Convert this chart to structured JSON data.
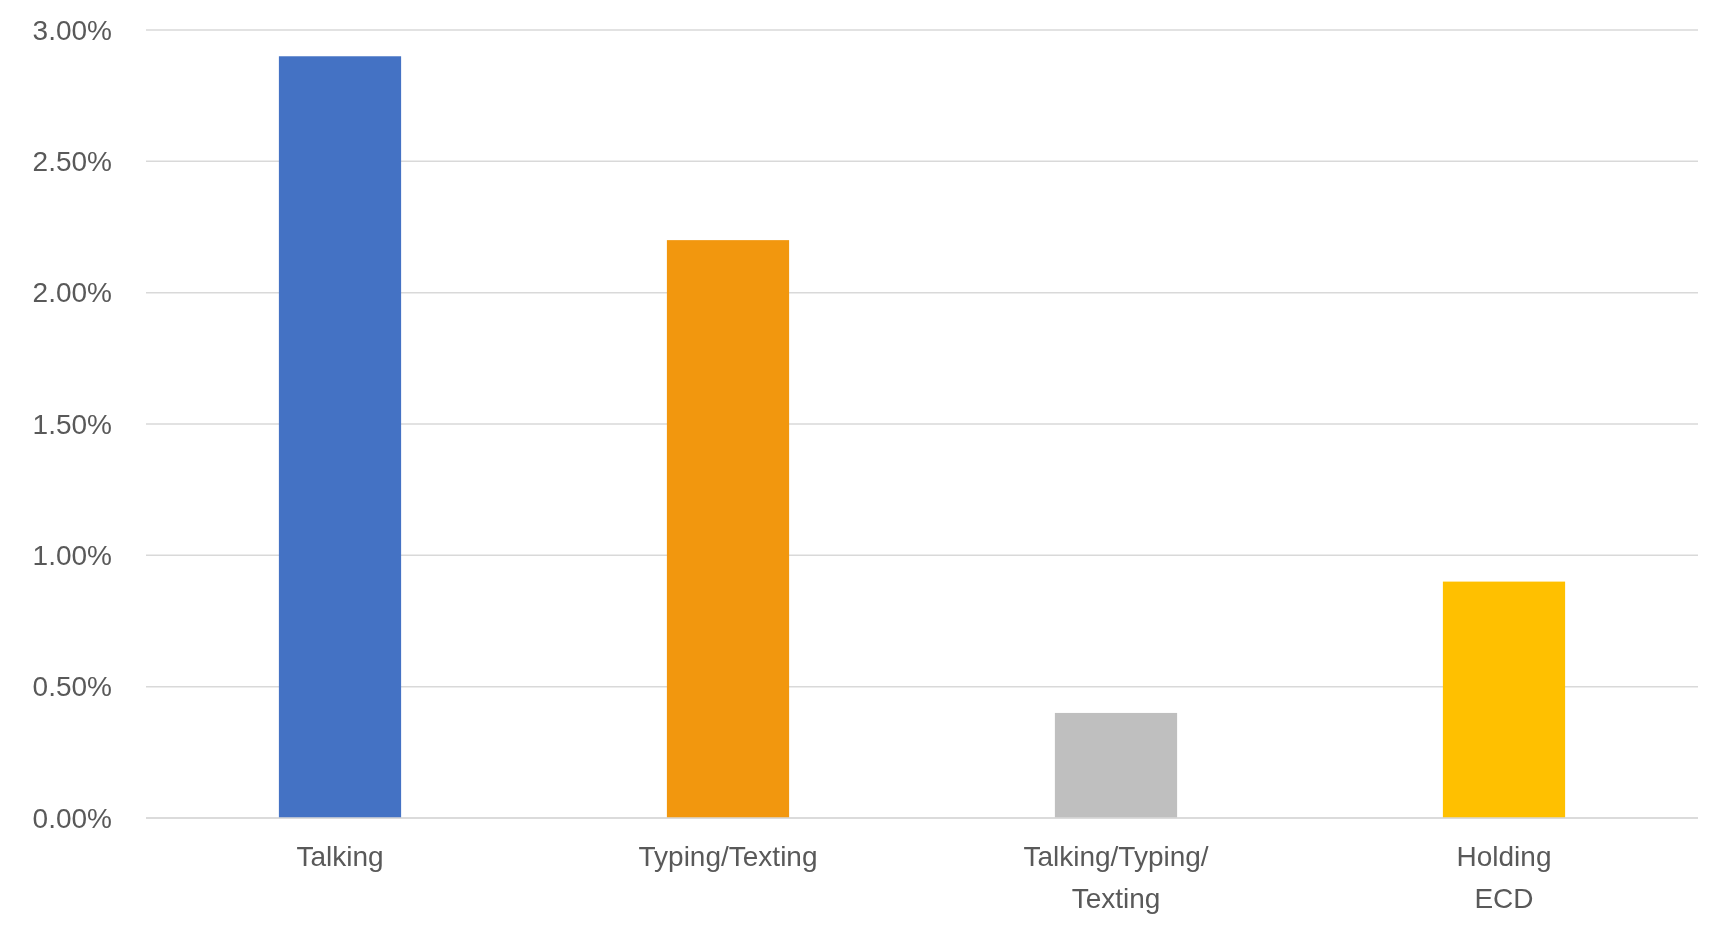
{
  "chart_data": {
    "type": "bar",
    "categories": [
      "Talking",
      "Typing/Texting",
      "Talking/Typing/Texting",
      "Holding ECD"
    ],
    "values": [
      2.9,
      2.2,
      0.4,
      0.9
    ],
    "colors": [
      "#4472c4",
      "#f2970e",
      "#bfbfbf",
      "#ffc000"
    ],
    "ylim": [
      0,
      3
    ],
    "yticks": [
      {
        "value": 0,
        "label": "0.00%"
      },
      {
        "value": 0.5,
        "label": "0.50%"
      },
      {
        "value": 1,
        "label": "1.00%"
      },
      {
        "value": 1.5,
        "label": "1.50%"
      },
      {
        "value": 2,
        "label": "2.00%"
      },
      {
        "value": 2.5,
        "label": "2.50%"
      },
      {
        "value": 3,
        "label": "3.00%"
      }
    ],
    "grid": "y"
  }
}
